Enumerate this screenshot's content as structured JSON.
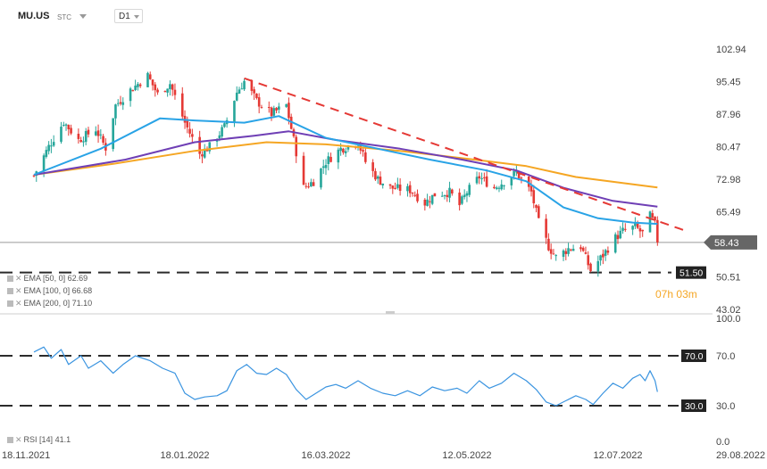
{
  "header": {
    "symbol": "MU.US",
    "market": "STC",
    "timeframe": "D1"
  },
  "legend": {
    "ema50": "EMA [50, 0] 62.69",
    "ema100": "EMA [100, 0] 66.68",
    "ema200": "EMA [200, 0] 71.10",
    "rsi": "RSI [14] 41.1"
  },
  "badges": {
    "last_price": "58.43",
    "support": "51.50",
    "rsi_high": "70.0",
    "rsi_low": "30.0"
  },
  "countdown": {
    "hours": "07",
    "h": "h",
    "minutes": "03",
    "m": "m"
  },
  "colors": {
    "up": "#26a69a",
    "down": "#e53935",
    "ema50": "#29a3e6",
    "ema100": "#6f3fb5",
    "ema200": "#f5a623",
    "trend": "#e53935",
    "rsi": "#3a94e0"
  },
  "chart_data": {
    "type": "candlestick",
    "price_axis_ticks": [
      102.94,
      95.45,
      87.96,
      80.47,
      72.98,
      65.49,
      58.0,
      50.51,
      43.02
    ],
    "price_axis_labels": [
      "102.94",
      "95.45",
      "87.96",
      "80.47",
      "72.98",
      "65.49",
      "",
      "50.51",
      "43.02"
    ],
    "x_tick_labels": [
      "18.11.2021",
      "18.01.2022",
      "16.03.2022",
      "12.05.2022",
      "12.07.2022",
      "29.08.2022"
    ],
    "x_tick_dates": [
      "2021-11-18",
      "2022-01-18",
      "2022-03-16",
      "2022-05-12",
      "2022-07-12",
      "2022-08-29"
    ],
    "last_date": "2022-07-28",
    "last_price": 58.43,
    "support_level": 51.5,
    "close_path": [
      [
        "2021-11-18",
        73.8
      ],
      [
        "2021-11-24",
        80.5
      ],
      [
        "2021-11-30",
        86.2
      ],
      [
        "2021-12-06",
        82.0
      ],
      [
        "2021-12-13",
        84.5
      ],
      [
        "2021-12-17",
        80.2
      ],
      [
        "2021-12-21",
        90.0
      ],
      [
        "2021-12-27",
        93.5
      ],
      [
        "2022-01-03",
        96.8
      ],
      [
        "2022-01-07",
        92.5
      ],
      [
        "2022-01-12",
        95.0
      ],
      [
        "2022-01-18",
        86.0
      ],
      [
        "2022-01-24",
        78.8
      ],
      [
        "2022-01-28",
        80.5
      ],
      [
        "2022-02-03",
        85.0
      ],
      [
        "2022-02-08",
        93.0
      ],
      [
        "2022-02-11",
        95.5
      ],
      [
        "2022-02-16",
        91.0
      ],
      [
        "2022-02-22",
        88.0
      ],
      [
        "2022-02-28",
        90.0
      ],
      [
        "2022-03-03",
        82.0
      ],
      [
        "2022-03-07",
        71.0
      ],
      [
        "2022-03-11",
        72.5
      ],
      [
        "2022-03-16",
        77.0
      ],
      [
        "2022-03-22",
        80.0
      ],
      [
        "2022-03-29",
        81.5
      ],
      [
        "2022-04-01",
        77.0
      ],
      [
        "2022-04-06",
        73.0
      ],
      [
        "2022-04-11",
        71.0
      ],
      [
        "2022-04-19",
        70.5
      ],
      [
        "2022-04-25",
        67.5
      ],
      [
        "2022-04-29",
        69.5
      ],
      [
        "2022-05-05",
        70.0
      ],
      [
        "2022-05-09",
        67.0
      ],
      [
        "2022-05-12",
        70.0
      ],
      [
        "2022-05-17",
        73.5
      ],
      [
        "2022-05-23",
        71.0
      ],
      [
        "2022-05-27",
        72.5
      ],
      [
        "2022-06-01",
        74.5
      ],
      [
        "2022-06-07",
        70.0
      ],
      [
        "2022-06-10",
        63.0
      ],
      [
        "2022-06-14",
        57.5
      ],
      [
        "2022-06-17",
        55.0
      ],
      [
        "2022-06-22",
        57.0
      ],
      [
        "2022-06-27",
        57.5
      ],
      [
        "2022-07-01",
        52.0
      ],
      [
        "2022-07-06",
        55.5
      ],
      [
        "2022-07-11",
        59.5
      ],
      [
        "2022-07-14",
        61.0
      ],
      [
        "2022-07-19",
        62.0
      ],
      [
        "2022-07-22",
        60.5
      ],
      [
        "2022-07-25",
        64.5
      ],
      [
        "2022-07-27",
        62.5
      ],
      [
        "2022-07-28",
        58.43
      ]
    ],
    "ema50": [
      [
        "2021-11-18",
        74.0
      ],
      [
        "2021-12-15",
        80.0
      ],
      [
        "2022-01-08",
        87.0
      ],
      [
        "2022-01-22",
        86.5
      ],
      [
        "2022-02-11",
        86.0
      ],
      [
        "2022-02-25",
        87.5
      ],
      [
        "2022-03-16",
        82.5
      ],
      [
        "2022-04-06",
        80.0
      ],
      [
        "2022-04-27",
        77.5
      ],
      [
        "2022-05-20",
        75.0
      ],
      [
        "2022-06-05",
        72.5
      ],
      [
        "2022-06-20",
        66.5
      ],
      [
        "2022-07-04",
        64.0
      ],
      [
        "2022-07-18",
        63.0
      ],
      [
        "2022-07-28",
        62.69
      ]
    ],
    "ema100": [
      [
        "2021-11-18",
        74.0
      ],
      [
        "2021-12-25",
        77.5
      ],
      [
        "2022-01-22",
        81.5
      ],
      [
        "2022-02-15",
        83.0
      ],
      [
        "2022-03-01",
        84.0
      ],
      [
        "2022-03-20",
        82.0
      ],
      [
        "2022-04-15",
        80.0
      ],
      [
        "2022-05-10",
        77.5
      ],
      [
        "2022-06-01",
        75.0
      ],
      [
        "2022-06-20",
        71.0
      ],
      [
        "2022-07-10",
        68.0
      ],
      [
        "2022-07-28",
        66.68
      ]
    ],
    "ema200": [
      [
        "2021-11-18",
        74.0
      ],
      [
        "2021-12-20",
        76.5
      ],
      [
        "2022-01-22",
        79.5
      ],
      [
        "2022-02-20",
        81.5
      ],
      [
        "2022-03-16",
        81.0
      ],
      [
        "2022-04-15",
        79.5
      ],
      [
        "2022-05-15",
        77.5
      ],
      [
        "2022-06-05",
        76.0
      ],
      [
        "2022-06-25",
        73.5
      ],
      [
        "2022-07-28",
        71.1
      ]
    ],
    "trendline": [
      [
        "2022-02-11",
        96.2
      ],
      [
        "2022-08-09",
        61.0
      ]
    ],
    "rsi": {
      "label": "RSI [14]",
      "current": 41.1,
      "ticks": [
        100.0,
        70.0,
        30.0,
        0.0
      ],
      "tick_labels": [
        "100.0",
        "70.0",
        "30.0",
        "0.0"
      ],
      "levels": [
        70.0,
        30.0
      ],
      "values": [
        [
          "2021-11-18",
          73.0
        ],
        [
          "2021-11-22",
          77.0
        ],
        [
          "2021-11-25",
          68.0
        ],
        [
          "2021-11-29",
          75.0
        ],
        [
          "2021-12-02",
          63.0
        ],
        [
          "2021-12-07",
          70.0
        ],
        [
          "2021-12-10",
          60.0
        ],
        [
          "2021-12-15",
          66.0
        ],
        [
          "2021-12-20",
          56.0
        ],
        [
          "2021-12-24",
          63.0
        ],
        [
          "2021-12-29",
          70.0
        ],
        [
          "2022-01-04",
          66.0
        ],
        [
          "2022-01-09",
          60.0
        ],
        [
          "2022-01-14",
          56.0
        ],
        [
          "2022-01-18",
          40.0
        ],
        [
          "2022-01-22",
          35.0
        ],
        [
          "2022-01-26",
          37.0
        ],
        [
          "2022-01-31",
          38.0
        ],
        [
          "2022-02-04",
          42.0
        ],
        [
          "2022-02-08",
          58.0
        ],
        [
          "2022-02-12",
          63.0
        ],
        [
          "2022-02-16",
          56.0
        ],
        [
          "2022-02-20",
          55.0
        ],
        [
          "2022-02-24",
          60.0
        ],
        [
          "2022-02-28",
          55.0
        ],
        [
          "2022-03-04",
          43.0
        ],
        [
          "2022-03-08",
          35.0
        ],
        [
          "2022-03-12",
          40.0
        ],
        [
          "2022-03-16",
          45.0
        ],
        [
          "2022-03-20",
          47.0
        ],
        [
          "2022-03-24",
          44.0
        ],
        [
          "2022-03-29",
          50.0
        ],
        [
          "2022-04-03",
          44.0
        ],
        [
          "2022-04-08",
          40.0
        ],
        [
          "2022-04-13",
          38.0
        ],
        [
          "2022-04-18",
          42.0
        ],
        [
          "2022-04-23",
          38.0
        ],
        [
          "2022-04-28",
          45.0
        ],
        [
          "2022-05-03",
          42.0
        ],
        [
          "2022-05-08",
          44.0
        ],
        [
          "2022-05-12",
          40.0
        ],
        [
          "2022-05-17",
          50.0
        ],
        [
          "2022-05-21",
          44.0
        ],
        [
          "2022-05-26",
          48.0
        ],
        [
          "2022-05-31",
          56.0
        ],
        [
          "2022-06-05",
          50.0
        ],
        [
          "2022-06-09",
          43.0
        ],
        [
          "2022-06-13",
          33.0
        ],
        [
          "2022-06-17",
          30.0
        ],
        [
          "2022-06-21",
          34.0
        ],
        [
          "2022-06-25",
          38.0
        ],
        [
          "2022-06-29",
          35.0
        ],
        [
          "2022-07-02",
          31.0
        ],
        [
          "2022-07-06",
          40.0
        ],
        [
          "2022-07-10",
          48.0
        ],
        [
          "2022-07-14",
          44.0
        ],
        [
          "2022-07-18",
          52.0
        ],
        [
          "2022-07-21",
          55.0
        ],
        [
          "2022-07-23",
          50.0
        ],
        [
          "2022-07-25",
          58.0
        ],
        [
          "2022-07-27",
          50.0
        ],
        [
          "2022-07-28",
          41.1
        ]
      ]
    }
  }
}
